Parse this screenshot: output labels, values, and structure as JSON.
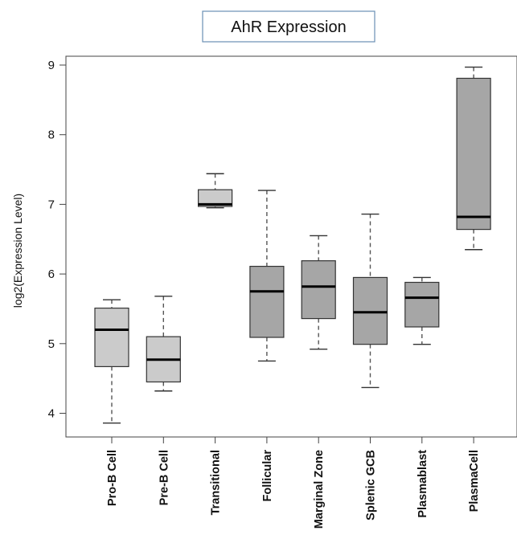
{
  "chart_data": {
    "type": "box",
    "title": "AhR Expression",
    "ylabel": "log2(Expression Level)",
    "xlabel": "",
    "ylim": [
      3.6,
      9.1
    ],
    "yticks": [
      4,
      5,
      6,
      7,
      8,
      9
    ],
    "categories": [
      "Pro-B Cell",
      "Pre-B Cell",
      "Transitional",
      "Follicular",
      "Marginal Zone",
      "Splenic GCB",
      "Plasmablast",
      "PlasmaCell"
    ],
    "boxes": [
      {
        "min": 3.86,
        "q1": 4.67,
        "median": 5.2,
        "q3": 5.51,
        "max": 5.63
      },
      {
        "min": 4.32,
        "q1": 4.45,
        "median": 4.77,
        "q3": 5.1,
        "max": 5.68
      },
      {
        "min": 6.95,
        "q1": 6.97,
        "median": 7.0,
        "q3": 7.21,
        "max": 7.44
      },
      {
        "min": 4.75,
        "q1": 5.09,
        "median": 5.75,
        "q3": 6.11,
        "max": 7.2
      },
      {
        "min": 4.92,
        "q1": 5.36,
        "median": 5.82,
        "q3": 6.19,
        "max": 6.55
      },
      {
        "min": 4.37,
        "q1": 4.99,
        "median": 5.45,
        "q3": 5.95,
        "max": 6.86
      },
      {
        "min": 4.99,
        "q1": 5.24,
        "median": 5.66,
        "q3": 5.88,
        "max": 5.95
      },
      {
        "min": 6.35,
        "q1": 6.64,
        "median": 6.82,
        "q3": 8.81,
        "max": 8.97
      }
    ],
    "colors": {
      "light_box": "#cbcbcb",
      "dark_box": "#a6a6a6"
    },
    "box_shades": [
      "light_box",
      "light_box",
      "light_box",
      "dark_box",
      "dark_box",
      "dark_box",
      "dark_box",
      "dark_box"
    ]
  }
}
